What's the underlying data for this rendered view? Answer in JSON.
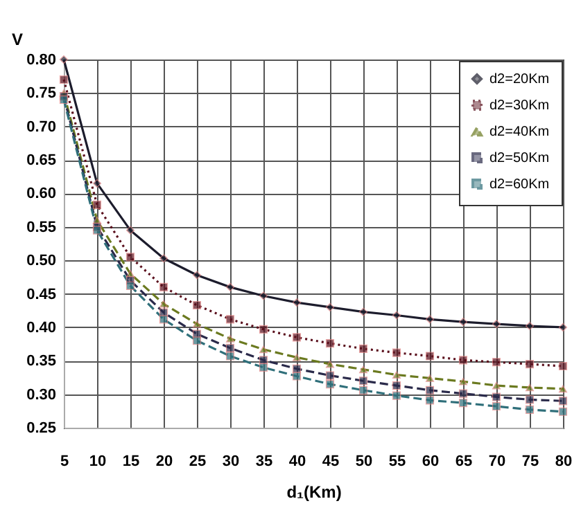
{
  "chart_data": {
    "type": "line",
    "xlabel": "d₁(Km)",
    "ylabel": "V",
    "x": [
      5,
      10,
      15,
      20,
      25,
      30,
      35,
      40,
      45,
      50,
      55,
      60,
      65,
      70,
      75,
      80
    ],
    "xlim": [
      5,
      80
    ],
    "xticks": [
      5,
      10,
      15,
      20,
      25,
      30,
      35,
      40,
      45,
      50,
      55,
      60,
      65,
      70,
      75,
      80
    ],
    "ylim": [
      0.25,
      0.8
    ],
    "yticks": [
      0.25,
      {
        "value": 0.3,
        "label": "0.30"
      },
      0.35,
      {
        "value": 0.4,
        "label": "0.40"
      },
      0.45,
      {
        "value": 0.5,
        "label": "0.50"
      },
      0.55,
      {
        "value": 0.6,
        "label": "0.60"
      },
      0.65,
      {
        "value": 0.7,
        "label": "0.70"
      },
      0.75,
      {
        "value": 0.8,
        "label": "0.80"
      }
    ],
    "grid": true,
    "legend": "top right",
    "series": [
      {
        "name": "d2=20Km",
        "color": "#1c1c2c",
        "marker": "diamond",
        "line_style": "solid",
        "values": [
          0.8,
          0.615,
          0.545,
          0.503,
          0.478,
          0.46,
          0.447,
          0.437,
          0.43,
          0.423,
          0.418,
          0.412,
          0.408,
          0.405,
          0.402,
          0.4
        ]
      },
      {
        "name": "d2=30Km",
        "color": "#5a0f1c",
        "marker": "square",
        "line_style": "dotted",
        "values": [
          0.77,
          0.583,
          0.505,
          0.46,
          0.433,
          0.412,
          0.397,
          0.385,
          0.376,
          0.368,
          0.362,
          0.357,
          0.351,
          0.348,
          0.345,
          0.342
        ]
      },
      {
        "name": "d2=40Km",
        "color": "#6b7a20",
        "marker": "triangle",
        "line_style": "dashed",
        "values": [
          0.75,
          0.56,
          0.48,
          0.435,
          0.405,
          0.383,
          0.367,
          0.355,
          0.345,
          0.337,
          0.329,
          0.324,
          0.319,
          0.313,
          0.31,
          0.308
        ]
      },
      {
        "name": "d2=50Km",
        "color": "#2a2a4a",
        "marker": "square",
        "line_style": "dashed",
        "values": [
          0.745,
          0.55,
          0.47,
          0.422,
          0.39,
          0.369,
          0.351,
          0.338,
          0.328,
          0.32,
          0.313,
          0.306,
          0.301,
          0.296,
          0.292,
          0.29
        ]
      },
      {
        "name": "d2=60Km",
        "color": "#2f6f7a",
        "marker": "square",
        "line_style": "dashed",
        "values": [
          0.74,
          0.545,
          0.462,
          0.412,
          0.38,
          0.357,
          0.34,
          0.327,
          0.315,
          0.306,
          0.298,
          0.291,
          0.287,
          0.282,
          0.277,
          0.274
        ]
      }
    ]
  }
}
